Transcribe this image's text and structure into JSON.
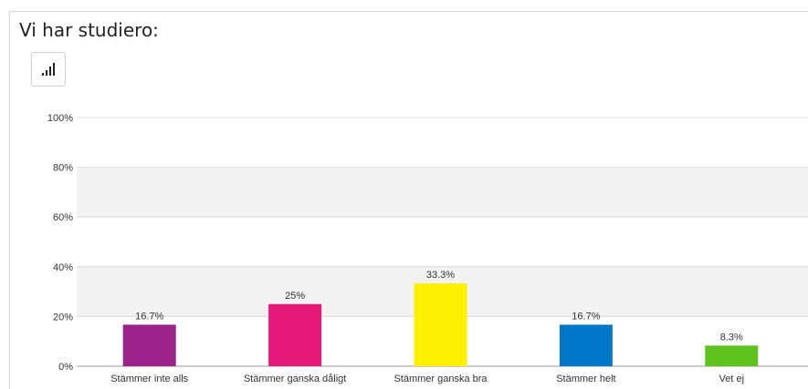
{
  "page": {
    "question_title": "Vi har studiero:",
    "chart_type_icon": "bar-chart-icon"
  },
  "chart_data": {
    "type": "bar",
    "categories": [
      "Stämmer inte alls",
      "Stämmer ganska dåligt",
      "Stämmer ganska bra",
      "Stämmer helt",
      "Vet ej"
    ],
    "values": [
      16.7,
      25,
      33.3,
      16.7,
      8.3
    ],
    "value_labels": [
      "16.7%",
      "25%",
      "33.3%",
      "16.7%",
      "8.3%"
    ],
    "colors": [
      "#9b2289",
      "#e5197a",
      "#ffef00",
      "#0077c8",
      "#5ec31f"
    ],
    "ylim": [
      0,
      100
    ],
    "yticks": [
      0,
      20,
      40,
      60,
      80,
      100
    ],
    "ytick_labels": [
      "0%",
      "20%",
      "40%",
      "60%",
      "80%",
      "100%"
    ],
    "grid": true,
    "band_color": "#f2f2f2",
    "gridline_color": "#dcdcdc"
  }
}
